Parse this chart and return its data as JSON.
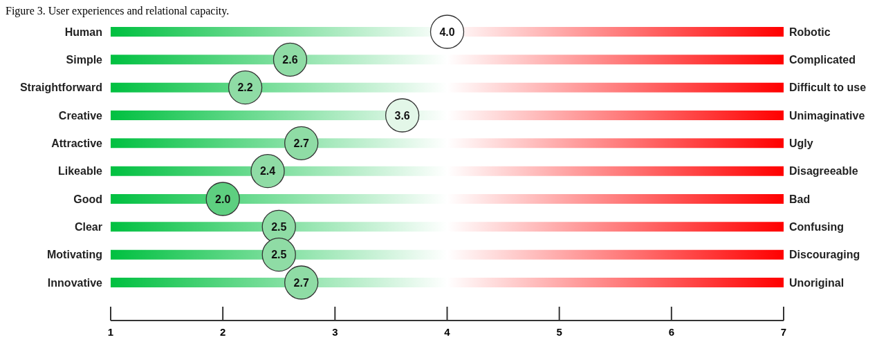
{
  "chart_data": {
    "type": "scatter",
    "orientation": "horizontal",
    "title": "Figure 3. User experiences and relational capacity.",
    "categories": [
      "Human",
      "Simple",
      "Straightforward",
      "Creative",
      "Attractive",
      "Likeable",
      "Good",
      "Clear",
      "Motivating",
      "Innovative"
    ],
    "y2_categories": [
      "Robotic",
      "Complicated",
      "Difficult to use",
      "Unimaginative",
      "Ugly",
      "Disagreeable",
      "Bad",
      "Confusing",
      "Discouraging",
      "Unoriginal"
    ],
    "values": [
      4.0,
      2.6,
      2.2,
      3.6,
      2.7,
      2.4,
      2.0,
      2.5,
      2.5,
      2.7
    ],
    "colors": [
      "#ffffff",
      "#8fdca5",
      "#8fdca5",
      "#e3f7e8",
      "#8fdca5",
      "#8fdca5",
      "#5ecf80",
      "#8fdca5",
      "#8fdca5",
      "#8fdca5"
    ],
    "value_labels": [
      "4.0",
      "2.6",
      "2.2",
      "3.6",
      "2.7",
      "2.4",
      "2.0",
      "2.5",
      "2.5",
      "2.7"
    ],
    "xlim": [
      1,
      7
    ],
    "xticks": [
      1,
      2,
      3,
      4,
      5,
      6,
      7
    ],
    "marker": "circle"
  }
}
